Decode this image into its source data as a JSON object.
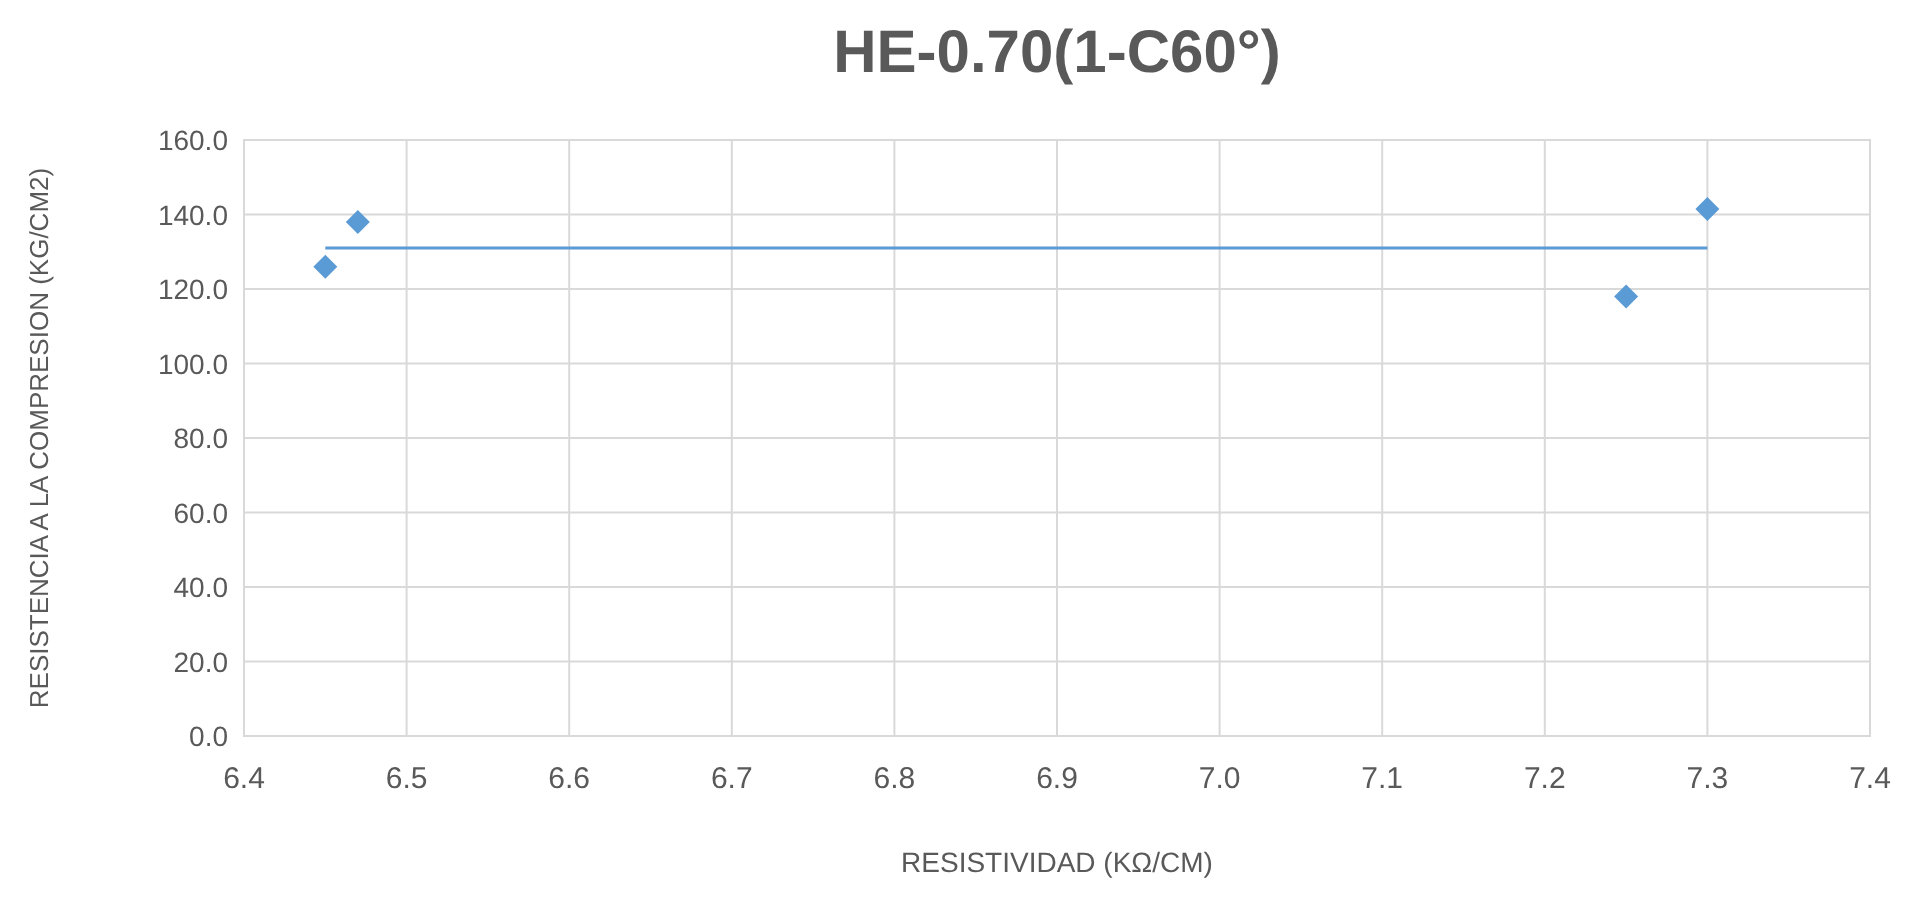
{
  "chart_data": {
    "type": "scatter",
    "title": "HE-0.70(1-C60°)",
    "xlabel": "RESISTIVIDAD (KΩ/CM)",
    "ylabel": "RESISTENCIA A LA COMPRESION (KG/CM2)",
    "x": [
      6.45,
      6.47,
      7.25,
      7.3
    ],
    "series": [
      {
        "color": "#5b9bd5",
        "marker": "diamond",
        "values": [
          126,
          138,
          118,
          141.5
        ]
      },
      {
        "type": "line",
        "color": "#5b9bd5",
        "marker": "none",
        "x": [
          6.45,
          7.3
        ],
        "values": [
          131,
          131
        ]
      }
    ],
    "xlim": [
      6.4,
      7.4
    ],
    "xticks": [
      6.4,
      6.5,
      6.6,
      6.7,
      6.8,
      6.9,
      {
        "value": 7,
        "label": "7.0"
      },
      7.1,
      7.2,
      7.3,
      7.4
    ],
    "ylim": [
      0,
      160
    ],
    "yticks": [
      {
        "value": 0,
        "label": "0.0"
      },
      {
        "value": 20,
        "label": "20.0"
      },
      {
        "value": 40,
        "label": "40.0"
      },
      {
        "value": 60,
        "label": "60.0"
      },
      {
        "value": 80,
        "label": "80.0"
      },
      {
        "value": 100,
        "label": "100.0"
      },
      {
        "value": 120,
        "label": "120.0"
      },
      {
        "value": 140,
        "label": "140.0"
      },
      {
        "value": 160,
        "label": "160.0"
      }
    ],
    "grid": true
  }
}
